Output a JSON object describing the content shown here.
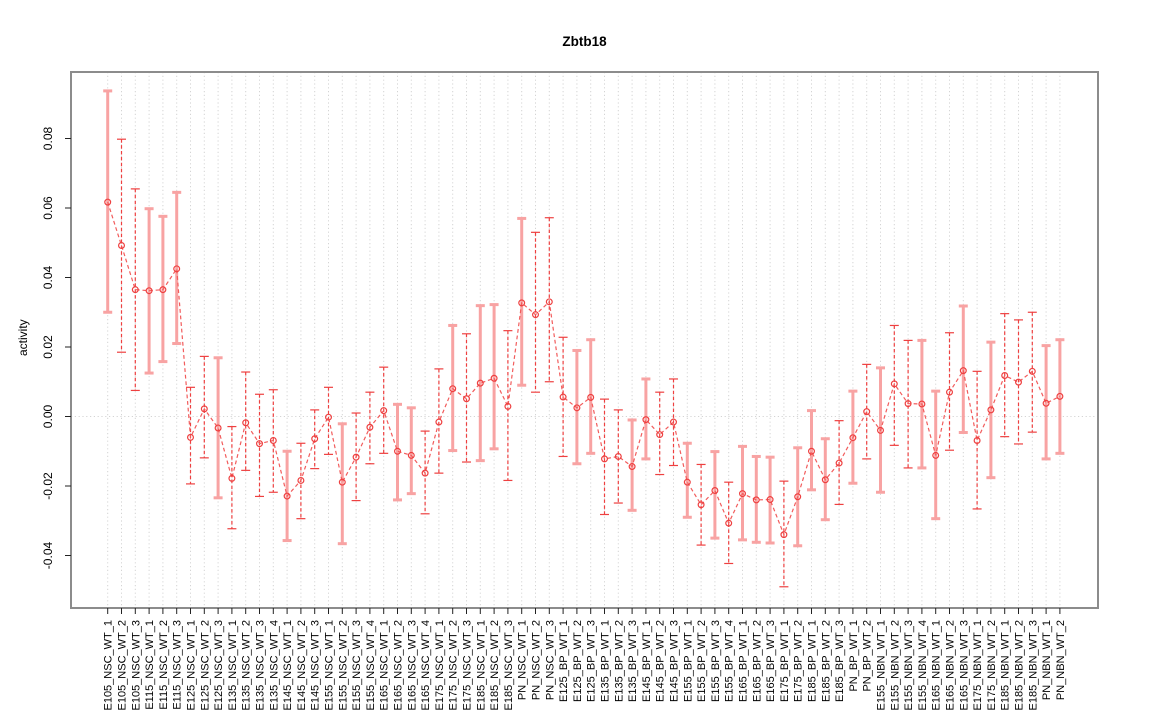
{
  "chart_data": {
    "type": "line",
    "title": "Zbtb18",
    "ylabel": "activity",
    "xlabel": "",
    "ylim": [
      -0.0558,
      0.0991
    ],
    "grid": "vertical dotted gridline per category; dotted horizontal line at y=0; no legend",
    "legend": "none",
    "ytick_values": [
      -0.04,
      -0.02,
      0,
      0.02,
      0.04,
      0.06,
      0.08
    ],
    "ytick_labels": [
      "-0.04",
      "-0.02",
      "0.00",
      "0.02",
      "0.04",
      "0.06",
      "0.08"
    ],
    "categories": [
      "E105_NSC_WT_1",
      "E105_NSC_WT_2",
      "E105_NSC_WT_3",
      "E115_NSC_WT_1",
      "E115_NSC_WT_2",
      "E115_NSC_WT_3",
      "E125_NSC_WT_1",
      "E125_NSC_WT_2",
      "E125_NSC_WT_3",
      "E135_NSC_WT_1",
      "E135_NSC_WT_2",
      "E135_NSC_WT_3",
      "E135_NSC_WT_4",
      "E145_NSC_WT_1",
      "E145_NSC_WT_2",
      "E145_NSC_WT_3",
      "E155_NSC_WT_1",
      "E155_NSC_WT_2",
      "E155_NSC_WT_3",
      "E155_NSC_WT_4",
      "E165_NSC_WT_1",
      "E165_NSC_WT_2",
      "E165_NSC_WT_3",
      "E165_NSC_WT_4",
      "E175_NSC_WT_1",
      "E175_NSC_WT_2",
      "E175_NSC_WT_3",
      "E185_NSC_WT_1",
      "E185_NSC_WT_2",
      "E185_NSC_WT_3",
      "PN_NSC_WT_1",
      "PN_NSC_WT_2",
      "PN_NSC_WT_3",
      "E125_BP_WT_1",
      "E125_BP_WT_2",
      "E125_BP_WT_3",
      "E135_BP_WT_1",
      "E135_BP_WT_2",
      "E135_BP_WT_3",
      "E145_BP_WT_1",
      "E145_BP_WT_2",
      "E145_BP_WT_3",
      "E155_BP_WT_1",
      "E155_BP_WT_2",
      "E155_BP_WT_3",
      "E155_BP_WT_4",
      "E165_BP_WT_1",
      "E165_BP_WT_2",
      "E165_BP_WT_3",
      "E175_BP_WT_1",
      "E175_BP_WT_2",
      "E185_BP_WT_1",
      "E185_BP_WT_2",
      "E185_BP_WT_3",
      "PN_BP_WT_1",
      "PN_BP_WT_2",
      "E155_NBN_WT_1",
      "E155_NBN_WT_2",
      "E155_NBN_WT_3",
      "E155_NBN_WT_4",
      "E165_NBN_WT_1",
      "E165_NBN_WT_2",
      "E165_NBN_WT_3",
      "E175_NBN_WT_1",
      "E175_NBN_WT_2",
      "E185_NBN_WT_1",
      "E185_NBN_WT_2",
      "E185_NBN_WT_3",
      "PN_NBN_WT_1",
      "PN_NBN_WT_2"
    ],
    "series": [
      {
        "name": "activity",
        "values": [
          0.0617,
          0.0492,
          0.0365,
          0.0362,
          0.0365,
          0.0425,
          -0.006,
          0.0022,
          -0.0033,
          -0.0178,
          -0.0018,
          -0.0078,
          -0.0069,
          -0.0229,
          -0.0184,
          -0.0064,
          -0.0002,
          -0.0189,
          -0.0117,
          -0.0031,
          0.0017,
          -0.01,
          -0.0112,
          -0.0163,
          -0.0016,
          0.008,
          0.0051,
          0.0096,
          0.011,
          0.0029,
          0.0327,
          0.0293,
          0.033,
          0.0056,
          0.0025,
          0.0055,
          -0.0122,
          -0.0115,
          -0.0144,
          -0.0009,
          -0.0052,
          -0.0016,
          -0.0189,
          -0.0254,
          -0.0213,
          -0.0307,
          -0.0222,
          -0.024,
          -0.0239,
          -0.034,
          -0.0231,
          -0.01,
          -0.0182,
          -0.0134,
          -0.0061,
          0.0014,
          -0.004,
          0.0094,
          0.0037,
          0.0036,
          -0.0112,
          0.007,
          0.0132,
          -0.0069,
          0.0019,
          0.0118,
          0.0099,
          0.013,
          0.0038,
          0.0058
        ]
      },
      {
        "name": "lower",
        "values": [
          0.03,
          0.0185,
          0.0075,
          0.0125,
          0.0158,
          0.021,
          -0.0194,
          -0.0119,
          -0.0234,
          -0.0323,
          -0.0155,
          -0.023,
          -0.0218,
          -0.0357,
          -0.0294,
          -0.015,
          -0.0109,
          -0.0366,
          -0.0242,
          -0.0136,
          -0.0106,
          -0.024,
          -0.0222,
          -0.028,
          -0.0163,
          -0.0098,
          -0.0131,
          -0.0127,
          -0.0093,
          -0.0184,
          0.009,
          0.007,
          0.01,
          -0.0115,
          -0.0136,
          -0.0106,
          -0.0282,
          -0.0249,
          -0.027,
          -0.0122,
          -0.0167,
          -0.0141,
          -0.029,
          -0.037,
          -0.035,
          -0.0423,
          -0.0355,
          -0.0362,
          -0.0364,
          -0.049,
          -0.0372,
          -0.0211,
          -0.0297,
          -0.0253,
          -0.0192,
          -0.0122,
          -0.0218,
          -0.0083,
          -0.0148,
          -0.0148,
          -0.0294,
          -0.0097,
          -0.0046,
          -0.0266,
          -0.0176,
          -0.0058,
          -0.0079,
          -0.0045,
          -0.0122,
          -0.0106
        ]
      },
      {
        "name": "upper",
        "values": [
          0.0937,
          0.0798,
          0.0655,
          0.0598,
          0.0576,
          0.0645,
          0.0084,
          0.0173,
          0.0169,
          -0.0029,
          0.0128,
          0.0064,
          0.0077,
          -0.01,
          -0.0077,
          0.0019,
          0.0084,
          -0.0021,
          0.001,
          0.007,
          0.0142,
          0.0035,
          0.0025,
          -0.0042,
          0.0137,
          0.0262,
          0.0238,
          0.0319,
          0.0322,
          0.0247,
          0.057,
          0.053,
          0.0572,
          0.0228,
          0.019,
          0.0221,
          0.005,
          0.0019,
          -0.001,
          0.0108,
          0.007,
          0.0108,
          -0.0077,
          -0.0138,
          -0.0101,
          -0.0189,
          -0.0086,
          -0.0115,
          -0.0117,
          -0.0186,
          -0.009,
          0.0017,
          -0.0064,
          -0.0012,
          0.0073,
          0.015,
          0.014,
          0.0262,
          0.0219,
          0.0219,
          0.0073,
          0.0241,
          0.0318,
          0.013,
          0.0214,
          0.0296,
          0.0278,
          0.03,
          0.0204,
          0.0221
        ]
      }
    ],
    "bar_styles": [
      "pale",
      "dark",
      "dark",
      "pale",
      "pale",
      "pale",
      "dark",
      "dark",
      "pale",
      "dark",
      "dark",
      "dark",
      "dark",
      "pale",
      "dark",
      "dark",
      "dark",
      "pale",
      "dark",
      "dark",
      "dark",
      "pale",
      "pale",
      "dark",
      "dark",
      "pale",
      "dark",
      "pale",
      "pale",
      "dark",
      "pale",
      "dark",
      "dark",
      "dark",
      "pale",
      "pale",
      "dark",
      "dark",
      "pale",
      "pale",
      "dark",
      "dark",
      "pale",
      "dark",
      "pale",
      "dark",
      "pale",
      "pale",
      "pale",
      "dark",
      "pale",
      "pale",
      "pale",
      "dark",
      "pale",
      "dark",
      "pale",
      "dark",
      "dark",
      "pale",
      "pale",
      "dark",
      "pale",
      "dark",
      "pale",
      "dark",
      "dark",
      "dark",
      "pale",
      "pale"
    ]
  },
  "colors": {
    "bar_pale": "#f8a3a3",
    "bar_dark": "#ee4040",
    "series_line": "#f25c5c",
    "marker": "#ee4040",
    "frame": "#8c8c8c",
    "grid": "#d4d4d4",
    "tick": "#222222",
    "text": "#000000"
  }
}
